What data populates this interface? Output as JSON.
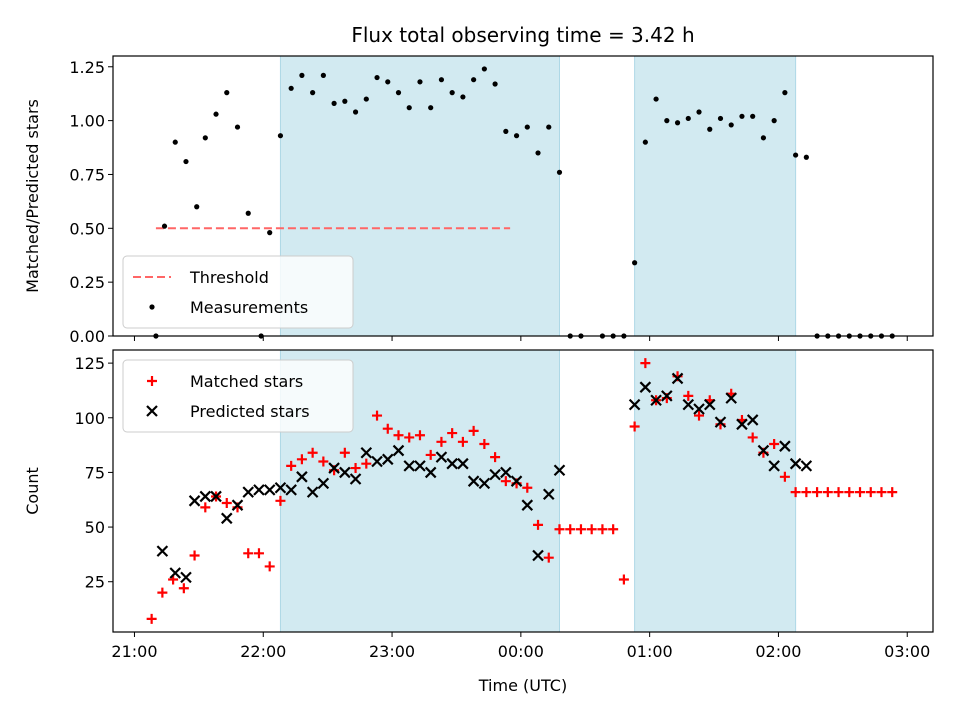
{
  "chart_data": {
    "title": "Flux total observing time = 3.42 h",
    "xlabel": "Time (UTC)",
    "x_ticks": [
      "21:00",
      "22:00",
      "23:00",
      "00:00",
      "01:00",
      "02:00",
      "03:00"
    ],
    "shade_color": "#add8e6",
    "observing_windows": [
      [
        "22:08",
        "00:18"
      ],
      [
        "00:53",
        "02:08"
      ]
    ],
    "panels": [
      {
        "type": "scatter",
        "ylabel": "Matched/Predicted stars",
        "ylim": [
          0,
          1.3
        ],
        "y_ticks": [
          "0.00",
          "0.25",
          "0.50",
          "0.75",
          "1.00",
          "1.25"
        ],
        "threshold": {
          "name": "Threshold",
          "value": 0.5,
          "x": [
            "21:10",
            "23:55"
          ],
          "color": "#ff6666",
          "style": "dashed"
        },
        "legend": {
          "position": "lower-left",
          "entries": [
            "Threshold",
            "Measurements"
          ]
        },
        "series": [
          {
            "name": "Measurements",
            "marker": "dot",
            "color": "#000000",
            "x": [
              "21:10",
              "21:14",
              "21:19",
              "21:24",
              "21:29",
              "21:33",
              "21:38",
              "21:43",
              "21:48",
              "21:53",
              "21:59",
              "22:03",
              "22:08",
              "22:13",
              "22:18",
              "22:23",
              "22:28",
              "22:33",
              "22:38",
              "22:43",
              "22:48",
              "22:53",
              "22:58",
              "23:03",
              "23:08",
              "23:13",
              "23:18",
              "23:23",
              "23:28",
              "23:33",
              "23:38",
              "23:43",
              "23:48",
              "23:53",
              "23:58",
              "00:03",
              "00:08",
              "00:13",
              "00:18",
              "00:23",
              "00:28",
              "00:38",
              "00:43",
              "00:48",
              "00:53",
              "00:58",
              "01:03",
              "01:08",
              "01:13",
              "01:18",
              "01:23",
              "01:28",
              "01:33",
              "01:38",
              "01:43",
              "01:48",
              "01:53",
              "01:58",
              "02:03",
              "02:08",
              "02:13",
              "02:18",
              "02:23",
              "02:28",
              "02:33",
              "02:38",
              "02:43",
              "02:48",
              "02:53"
            ],
            "y": [
              0.0,
              0.51,
              0.9,
              0.81,
              0.6,
              0.92,
              1.03,
              1.13,
              0.97,
              0.57,
              0.0,
              0.48,
              0.93,
              1.15,
              1.21,
              1.13,
              1.21,
              1.08,
              1.09,
              1.04,
              1.1,
              1.2,
              1.18,
              1.13,
              1.06,
              1.18,
              1.06,
              1.19,
              1.13,
              1.11,
              1.19,
              1.24,
              1.17,
              0.95,
              0.93,
              0.97,
              0.85,
              0.97,
              0.76,
              0.0,
              0.0,
              0.0,
              0.0,
              0.0,
              0.34,
              0.9,
              1.1,
              1.0,
              0.99,
              1.01,
              1.04,
              0.96,
              1.01,
              0.98,
              1.02,
              1.02,
              0.92,
              1.0,
              1.13,
              0.84,
              0.83,
              0.0,
              0.0,
              0.0,
              0.0,
              0.0,
              0.0,
              0.0,
              0.0
            ]
          }
        ]
      },
      {
        "type": "scatter",
        "ylabel": "Count",
        "ylim": [
          2,
          131
        ],
        "y_ticks": [
          "25",
          "50",
          "75",
          "100",
          "125"
        ],
        "legend": {
          "position": "upper-left",
          "entries": [
            "Matched stars",
            "Predicted stars"
          ]
        },
        "series": [
          {
            "name": "Matched stars",
            "marker": "plus",
            "color": "#ff0000",
            "x": [
              "21:08",
              "21:13",
              "21:18",
              "21:23",
              "21:28",
              "21:33",
              "21:38",
              "21:43",
              "21:48",
              "21:53",
              "21:58",
              "22:03",
              "22:08",
              "22:13",
              "22:18",
              "22:23",
              "22:28",
              "22:33",
              "22:38",
              "22:43",
              "22:48",
              "22:53",
              "22:58",
              "23:03",
              "23:08",
              "23:13",
              "23:18",
              "23:23",
              "23:28",
              "23:33",
              "23:38",
              "23:43",
              "23:48",
              "23:53",
              "23:58",
              "00:03",
              "00:08",
              "00:13",
              "00:18",
              "00:23",
              "00:28",
              "00:33",
              "00:38",
              "00:43",
              "00:48",
              "00:53",
              "00:58",
              "01:03",
              "01:08",
              "01:13",
              "01:18",
              "01:23",
              "01:28",
              "01:33",
              "01:38",
              "01:43",
              "01:48",
              "01:53",
              "01:58",
              "02:03",
              "02:08",
              "02:13",
              "02:18",
              "02:23",
              "02:28",
              "02:33",
              "02:38",
              "02:43",
              "02:48",
              "02:53"
            ],
            "y": [
              8,
              20,
              26,
              22,
              37,
              59,
              64,
              61,
              59,
              38,
              38,
              32,
              62,
              78,
              81,
              84,
              80,
              76,
              84,
              77,
              79,
              101,
              95,
              92,
              91,
              92,
              83,
              89,
              93,
              89,
              94,
              88,
              82,
              71,
              70,
              68,
              51,
              36,
              49,
              49,
              49,
              49,
              49,
              49,
              26,
              96,
              125,
              108,
              109,
              119,
              110,
              101,
              108,
              97,
              111,
              99,
              91,
              84,
              88,
              73,
              66,
              66,
              66,
              66,
              66,
              66,
              66,
              66,
              66,
              66
            ]
          },
          {
            "name": "Predicted stars",
            "marker": "x",
            "color": "#000000",
            "x": [
              "21:13",
              "21:19",
              "21:24",
              "21:28",
              "21:33",
              "21:38",
              "21:43",
              "21:48",
              "21:53",
              "21:58",
              "22:03",
              "22:08",
              "22:13",
              "22:18",
              "22:23",
              "22:28",
              "22:33",
              "22:38",
              "22:43",
              "22:48",
              "22:53",
              "22:58",
              "23:03",
              "23:08",
              "23:13",
              "23:18",
              "23:23",
              "23:28",
              "23:33",
              "23:38",
              "23:43",
              "23:48",
              "23:53",
              "23:58",
              "00:03",
              "00:08",
              "00:13",
              "00:18",
              "00:53",
              "00:58",
              "01:03",
              "01:08",
              "01:13",
              "01:18",
              "01:23",
              "01:28",
              "01:33",
              "01:38",
              "01:43",
              "01:48",
              "01:53",
              "01:58",
              "02:03",
              "02:08",
              "02:13"
            ],
            "y": [
              39,
              29,
              27,
              62,
              64,
              64,
              54,
              60,
              66,
              67,
              67,
              68,
              67,
              73,
              66,
              70,
              77,
              75,
              72,
              84,
              80,
              81,
              85,
              78,
              78,
              75,
              82,
              79,
              79,
              71,
              70,
              74,
              75,
              71,
              60,
              37,
              65,
              76,
              106,
              114,
              108,
              110,
              118,
              106,
              104,
              106,
              98,
              109,
              97,
              99,
              85,
              78,
              87,
              79,
              78
            ]
          }
        ]
      }
    ]
  }
}
